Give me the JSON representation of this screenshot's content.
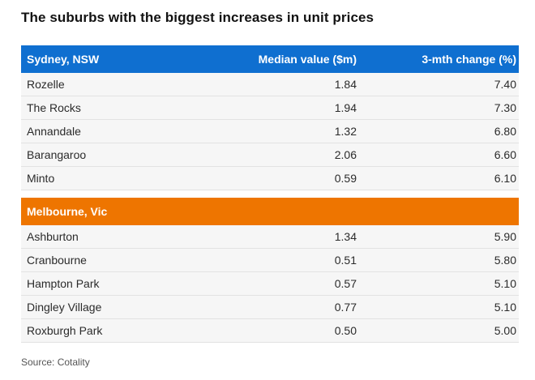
{
  "title": "The suburbs with the biggest increases in unit prices",
  "source": "Source: Cotality",
  "colors": {
    "sydney_header": "#0f6fd0",
    "melbourne_header": "#ee7500",
    "row_background": "#f6f6f6"
  },
  "chart_data": {
    "type": "table",
    "title": "The suburbs with the biggest increases in unit prices",
    "columns": [
      "Median value ($m)",
      "3-mth change (%)"
    ],
    "sections": [
      {
        "name": "Sydney, NSW",
        "rows": [
          {
            "suburb": "Rozelle",
            "median": "1.84",
            "change": "7.40"
          },
          {
            "suburb": "The Rocks",
            "median": "1.94",
            "change": "7.30"
          },
          {
            "suburb": "Annandale",
            "median": "1.32",
            "change": "6.80"
          },
          {
            "suburb": "Barangaroo",
            "median": "2.06",
            "change": "6.60"
          },
          {
            "suburb": "Minto",
            "median": "0.59",
            "change": "6.10"
          }
        ]
      },
      {
        "name": "Melbourne, Vic",
        "rows": [
          {
            "suburb": "Ashburton",
            "median": "1.34",
            "change": "5.90"
          },
          {
            "suburb": "Cranbourne",
            "median": "0.51",
            "change": "5.80"
          },
          {
            "suburb": "Hampton Park",
            "median": "0.57",
            "change": "5.10"
          },
          {
            "suburb": "Dingley Village",
            "median": "0.77",
            "change": "5.10"
          },
          {
            "suburb": "Roxburgh Park",
            "median": "0.50",
            "change": "5.00"
          }
        ]
      }
    ]
  }
}
